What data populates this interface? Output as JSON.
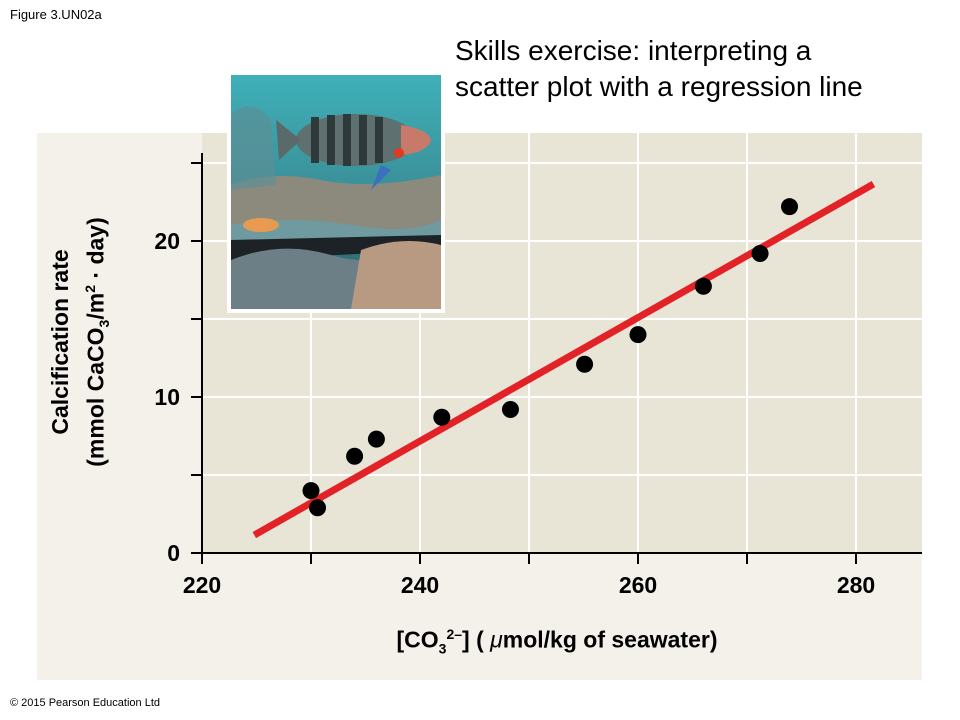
{
  "figure_label": "Figure 3.UN02a",
  "title_line1": "Skills exercise: interpreting a",
  "title_line2": "scatter plot with a regression line",
  "copyright": "© 2015 Pearson Education Ltd",
  "photo_subject": "fish-over-coral-reef",
  "colors": {
    "panel": "#f3f1ea",
    "plot_bg": "#e8e4d6",
    "grid": "#ffffff",
    "line": "#e32228",
    "points": "#000000"
  },
  "chart_data": {
    "type": "scatter",
    "title": "Skills exercise: interpreting a scatter plot with a regression line",
    "xlabel_parts": {
      "open": "[CO",
      "sub": "3",
      "sup": "2–",
      "close": "] (",
      "mu": "μ",
      "units": "mol/kg of seawater)"
    },
    "ylabel_parts": {
      "line1": "Calcification rate",
      "line2_a": "(mmol CaCO",
      "line2_sub": "3",
      "line2_b": "/m",
      "line2_sup": "2",
      "line2_c": " · day)"
    },
    "xlim": [
      220,
      286
    ],
    "ylim": [
      0,
      25.5
    ],
    "x_ticks": [
      220,
      230,
      240,
      250,
      260,
      270,
      280
    ],
    "x_tick_labels": [
      "220",
      "",
      "240",
      "",
      "260",
      "",
      "280"
    ],
    "y_ticks": [
      0,
      5,
      10,
      15,
      20,
      25
    ],
    "y_tick_labels": [
      "0",
      "",
      "10",
      "",
      "20",
      ""
    ],
    "grid": true,
    "points": [
      {
        "x": 230.0,
        "y": 4.0
      },
      {
        "x": 230.6,
        "y": 2.9
      },
      {
        "x": 234.0,
        "y": 6.2
      },
      {
        "x": 236.0,
        "y": 7.3
      },
      {
        "x": 242.0,
        "y": 8.7
      },
      {
        "x": 248.3,
        "y": 9.2
      },
      {
        "x": 255.1,
        "y": 12.1
      },
      {
        "x": 260.0,
        "y": 14.0
      },
      {
        "x": 266.0,
        "y": 17.1
      },
      {
        "x": 271.2,
        "y": 19.2
      },
      {
        "x": 273.9,
        "y": 22.2
      }
    ],
    "regression_line": {
      "x0": 224.8,
      "y0": 1.15,
      "x1": 281.6,
      "y1": 23.65
    }
  }
}
